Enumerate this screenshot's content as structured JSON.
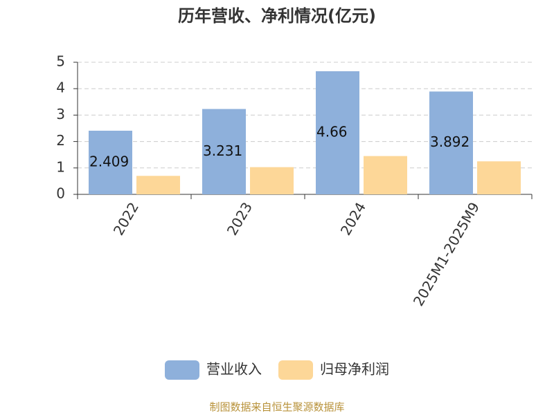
{
  "chart_data": {
    "type": "bar",
    "title": "历年营收、净利情况(亿元)",
    "categories": [
      "2022",
      "2023",
      "2024",
      "2025M1-2025M9"
    ],
    "series": [
      {
        "name": "营业收入",
        "color": "#8eb0db",
        "values": [
          2.409,
          3.231,
          4.66,
          3.892
        ],
        "data_labels": true
      },
      {
        "name": "归母净利润",
        "color": "#fdd798",
        "values": [
          0.7,
          1.03,
          1.45,
          1.25
        ],
        "data_labels": false
      }
    ],
    "ylim": [
      0,
      5
    ],
    "yticks": [
      0,
      1,
      2,
      3,
      4,
      5
    ],
    "grid": true,
    "legend": "bottom",
    "source": "制图数据来自恒生聚源数据库"
  }
}
